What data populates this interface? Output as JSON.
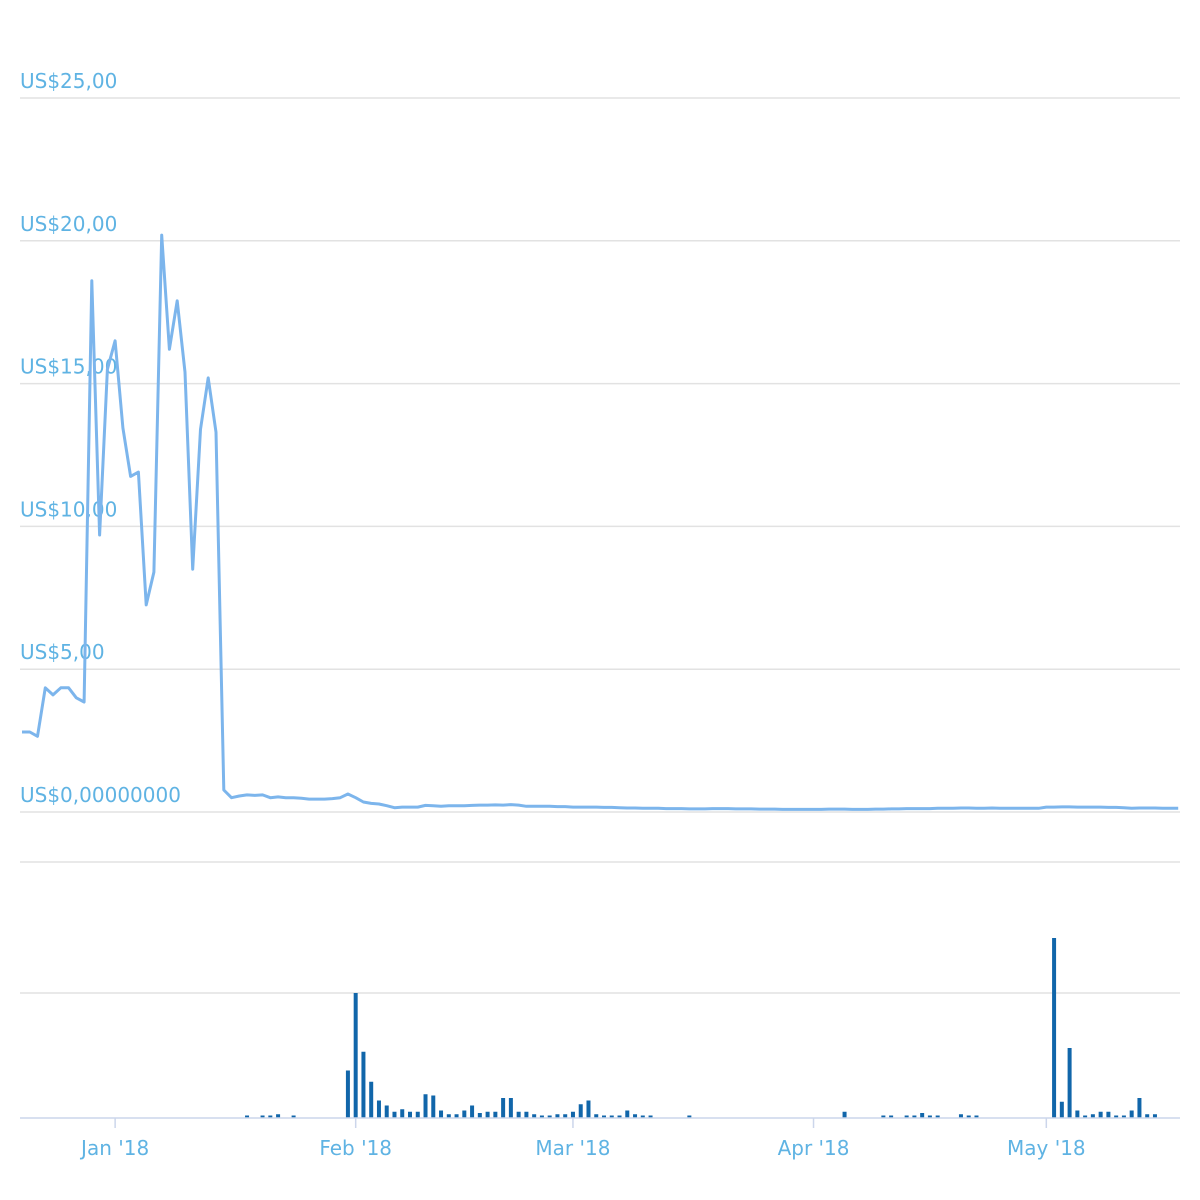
{
  "chart_data": [
    {
      "type": "line",
      "color": "#7cb5ec",
      "categories": [
        null,
        null,
        null,
        null,
        null,
        null,
        null,
        null,
        null,
        null,
        null,
        null,
        "Jan '18",
        null,
        null,
        null,
        null,
        null,
        null,
        null,
        null,
        null,
        null,
        null,
        null,
        null,
        null,
        null,
        null,
        null,
        null,
        null,
        null,
        null,
        null,
        null,
        null,
        null,
        null,
        null,
        null,
        null,
        null,
        "Feb '18",
        null,
        null,
        null,
        null,
        null,
        null,
        null,
        null,
        null,
        null,
        null,
        null,
        null,
        null,
        null,
        null,
        null,
        null,
        null,
        null,
        null,
        null,
        null,
        null,
        null,
        null,
        null,
        "Mar '18",
        null,
        null,
        null,
        null,
        null,
        null,
        null,
        null,
        null,
        null,
        null,
        null,
        null,
        null,
        null,
        null,
        null,
        null,
        null,
        null,
        null,
        null,
        null,
        null,
        null,
        null,
        null,
        null,
        null,
        null,
        "Apr '18",
        null,
        null,
        null,
        null,
        null,
        null,
        null,
        null,
        null,
        null,
        null,
        null,
        null,
        null,
        null,
        null,
        null,
        null,
        null,
        null,
        null,
        null,
        null,
        null,
        null,
        null,
        null,
        null,
        null,
        "May '18",
        null,
        null,
        null,
        null,
        null,
        null,
        null,
        null,
        null,
        null,
        null,
        null,
        null,
        null,
        null,
        null,
        null
      ],
      "values": [
        2.8,
        2.8,
        2.65,
        4.35,
        4.1,
        4.35,
        4.35,
        4.0,
        3.85,
        18.6,
        9.7,
        15.5,
        16.5,
        13.45,
        11.75,
        11.9,
        7.25,
        8.4,
        20.2,
        16.2,
        17.9,
        15.4,
        8.5,
        13.4,
        15.2,
        13.3,
        0.77,
        0.5,
        0.56,
        0.6,
        0.58,
        0.6,
        0.5,
        0.53,
        0.5,
        0.5,
        0.48,
        0.45,
        0.45,
        0.45,
        0.47,
        0.5,
        0.63,
        0.5,
        0.35,
        0.3,
        0.28,
        0.22,
        0.15,
        0.17,
        0.17,
        0.17,
        0.23,
        0.22,
        0.2,
        0.22,
        0.22,
        0.22,
        0.23,
        0.24,
        0.24,
        0.25,
        0.24,
        0.26,
        0.24,
        0.2,
        0.2,
        0.2,
        0.2,
        0.19,
        0.19,
        0.17,
        0.17,
        0.17,
        0.17,
        0.16,
        0.16,
        0.15,
        0.14,
        0.14,
        0.13,
        0.13,
        0.13,
        0.12,
        0.12,
        0.12,
        0.11,
        0.11,
        0.11,
        0.12,
        0.12,
        0.12,
        0.11,
        0.11,
        0.11,
        0.1,
        0.1,
        0.1,
        0.09,
        0.09,
        0.09,
        0.09,
        0.09,
        0.09,
        0.1,
        0.1,
        0.1,
        0.09,
        0.09,
        0.09,
        0.1,
        0.1,
        0.11,
        0.11,
        0.12,
        0.12,
        0.12,
        0.12,
        0.13,
        0.13,
        0.13,
        0.14,
        0.14,
        0.13,
        0.13,
        0.14,
        0.13,
        0.13,
        0.13,
        0.13,
        0.13,
        0.13,
        0.17,
        0.17,
        0.18,
        0.18,
        0.17,
        0.17,
        0.17,
        0.17,
        0.16,
        0.16,
        0.15,
        0.13,
        0.14,
        0.14,
        0.14,
        0.13,
        0.13,
        0.13
      ],
      "ylim": [
        0,
        25
      ],
      "yticks": [
        {
          "value": 0,
          "label": "US$0,00000000"
        },
        {
          "value": 5,
          "label": "US$5,00"
        },
        {
          "value": 10,
          "label": "US$10,00"
        },
        {
          "value": 15,
          "label": "US$15,00"
        },
        {
          "value": 20,
          "label": "US$20,00"
        },
        {
          "value": 25,
          "label": "US$25,00"
        }
      ],
      "grid": true
    },
    {
      "type": "bar",
      "color": "#1166aa",
      "values": [
        0,
        0,
        0,
        0,
        0,
        0,
        0,
        0,
        0,
        0,
        0,
        0,
        0,
        0,
        0,
        0,
        0,
        0,
        0,
        0,
        0,
        0,
        0,
        0,
        0,
        0,
        0,
        0,
        0,
        0.02,
        0,
        0.02,
        0.02,
        0.03,
        0,
        0.02,
        0,
        0,
        0,
        0,
        0,
        0,
        0.38,
        1.0,
        0.53,
        0.29,
        0.14,
        0.1,
        0.05,
        0.07,
        0.05,
        0.05,
        0.19,
        0.18,
        0.06,
        0.03,
        0.03,
        0.06,
        0.1,
        0.04,
        0.05,
        0.05,
        0.16,
        0.16,
        0.05,
        0.05,
        0.03,
        0.02,
        0.02,
        0.03,
        0.03,
        0.05,
        0.11,
        0.14,
        0.03,
        0.02,
        0.02,
        0.02,
        0.06,
        0.03,
        0.02,
        0.02,
        0,
        0,
        0,
        0,
        0.02,
        0,
        0,
        0,
        0,
        0,
        0,
        0,
        0,
        0,
        0,
        0,
        0,
        0,
        0,
        0,
        0,
        0,
        0,
        0,
        0.05,
        0,
        0,
        0,
        0,
        0.02,
        0.02,
        0,
        0.02,
        0.02,
        0.04,
        0.02,
        0.02,
        0,
        0,
        0.03,
        0.02,
        0.02,
        0,
        0,
        0,
        0,
        0,
        0,
        0,
        0,
        0,
        1.44,
        0.13,
        0.56,
        0.06,
        0.02,
        0.03,
        0.05,
        0.05,
        0.02,
        0.02,
        0.06,
        0.16,
        0.03,
        0.03,
        0,
        0,
        0
      ],
      "ylim": [
        0,
        2
      ],
      "yticks": [
        1
      ],
      "grid": true
    }
  ]
}
